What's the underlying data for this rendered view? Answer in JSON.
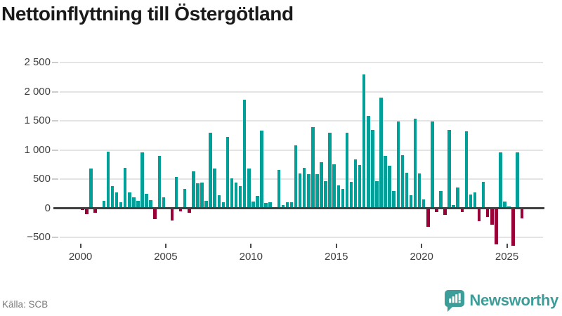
{
  "page": {
    "title": "Nettoinflyttning till Östergötland",
    "source": "Källa: SCB",
    "brand": "Newsworthy"
  },
  "colors": {
    "bar_positive": "#00a099",
    "bar_negative": "#990038",
    "zero_line": "#404040",
    "gridline": "#e4e4e4",
    "brand_teal": "#3c9d99",
    "title_text": "#1a1a1a",
    "axis_text": "#3f3f3f",
    "source_text": "#7b7b7b"
  },
  "chart_data": {
    "type": "bar",
    "title": "Nettoinflyttning till Östergötland",
    "frequency": "quarterly",
    "start_period": "2000-Q1",
    "end_period": "2025-Q4",
    "ylim": [
      -750,
      2650
    ],
    "grid": "horizontal",
    "legend": "none",
    "y_ticks": [
      {
        "label": "2 500",
        "value": 2500
      },
      {
        "label": "2 000",
        "value": 2000
      },
      {
        "label": "1 500",
        "value": 1500
      },
      {
        "label": "1 000",
        "value": 1000
      },
      {
        "label": "500",
        "value": 500
      },
      {
        "label": "0",
        "value": 0
      },
      {
        "label": "−500",
        "value": -500
      }
    ],
    "x_ticks": [
      {
        "label": "2000",
        "year": 2000
      },
      {
        "label": "2005",
        "year": 2005
      },
      {
        "label": "2010",
        "year": 2010
      },
      {
        "label": "2015",
        "year": 2015
      },
      {
        "label": "2020",
        "year": 2020
      },
      {
        "label": "2025",
        "year": 2025
      }
    ],
    "series": [
      {
        "name": "Nettoinflyttning till Östergötland",
        "values": [
          -30,
          -100,
          680,
          -80,
          20,
          125,
          970,
          380,
          275,
          105,
          700,
          270,
          190,
          135,
          960,
          250,
          140,
          -180,
          900,
          190,
          10,
          -210,
          540,
          -50,
          330,
          -80,
          640,
          430,
          440,
          130,
          1300,
          680,
          220,
          100,
          1230,
          520,
          440,
          380,
          1870,
          685,
          120,
          210,
          1330,
          90,
          100,
          20,
          665,
          60,
          110,
          110,
          1080,
          605,
          690,
          585,
          1400,
          585,
          790,
          465,
          1295,
          760,
          400,
          340,
          1300,
          450,
          845,
          745,
          2300,
          1590,
          1350,
          465,
          1900,
          905,
          730,
          300,
          1490,
          915,
          610,
          220,
          1540,
          605,
          155,
          -315,
          1495,
          -70,
          300,
          -110,
          1350,
          60,
          360,
          -70,
          1325,
          240,
          275,
          -220,
          455,
          -150,
          -280,
          -620,
          955,
          115,
          30,
          -640,
          955,
          -170
        ]
      }
    ]
  }
}
